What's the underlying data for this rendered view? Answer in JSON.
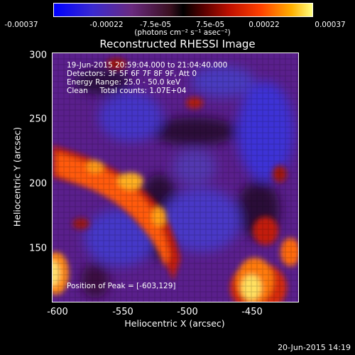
{
  "colorbar": {
    "ticks": [
      "-0.00037",
      "-0.00022",
      "-7.5e-05",
      "7.5e-05",
      "0.00022",
      "0.00037"
    ],
    "units": "(photons cm⁻² s⁻¹ asec⁻²)"
  },
  "plot": {
    "title": "Reconstructed RHESSI Image",
    "info_lines": [
      "19-Jun-2015 20:59:04.000 to 21:04:40.000",
      "Detectors: 3F 5F 6F 7F 8F 9F, Att 0",
      "Energy Range: 25.0 - 50.0 keV",
      "Clean     Total counts: 1.07E+04"
    ],
    "peak_label": "Position of Peak = [-603,129]",
    "xlabel": "Heliocentric X (arcsec)",
    "ylabel": "Heliocentric Y (arcsec)",
    "xticks": [
      "-600",
      "-550",
      "-500",
      "-450"
    ],
    "yticks": [
      "300",
      "250",
      "200",
      "150"
    ]
  },
  "footer": {
    "timestamp": "20-Jun-2015 14:19"
  },
  "colors": {
    "background": "#000000",
    "foreground": "#ffffff"
  }
}
